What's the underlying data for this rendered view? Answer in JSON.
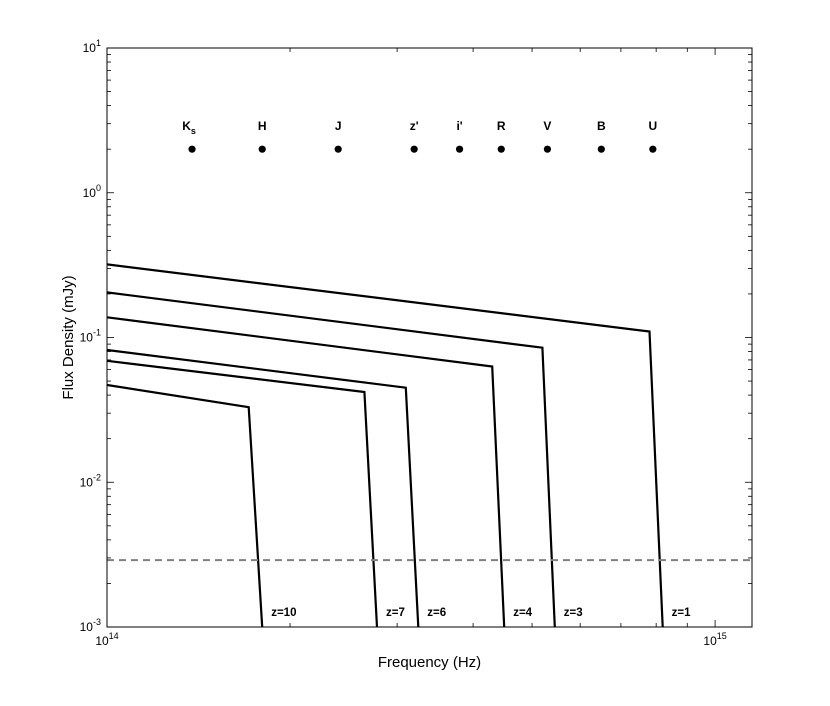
{
  "chart_data": {
    "type": "line",
    "xlabel": "Frequency (Hz)",
    "ylabel": "Flux Density (mJy)",
    "xscale": "log",
    "yscale": "log",
    "xlim": [
      100000000000000.0,
      1150000000000000.0
    ],
    "ylim": [
      0.001,
      10
    ],
    "x_ticks": [
      {
        "value": 100000000000000.0,
        "base": "10",
        "exp": "14"
      },
      {
        "value": 1000000000000000.0,
        "base": "10",
        "exp": "15"
      }
    ],
    "y_ticks": [
      {
        "value": 0.001,
        "base": "10",
        "exp": "-3"
      },
      {
        "value": 0.01,
        "base": "10",
        "exp": "-2"
      },
      {
        "value": 0.1,
        "base": "10",
        "exp": "-1"
      },
      {
        "value": 1,
        "base": "10",
        "exp": "0"
      },
      {
        "value": 10,
        "base": "10",
        "exp": "1"
      }
    ],
    "grid": false,
    "bands": [
      {
        "name": "K",
        "sub": "s",
        "frequency": 138000000000000.0,
        "flux": 2.0
      },
      {
        "name": "H",
        "sub": "",
        "frequency": 180000000000000.0,
        "flux": 2.0
      },
      {
        "name": "J",
        "sub": "",
        "frequency": 240000000000000.0,
        "flux": 2.0
      },
      {
        "name": "z'",
        "sub": "",
        "frequency": 320000000000000.0,
        "flux": 2.0
      },
      {
        "name": "i'",
        "sub": "",
        "frequency": 380000000000000.0,
        "flux": 2.0
      },
      {
        "name": "R",
        "sub": "",
        "frequency": 445000000000000.0,
        "flux": 2.0
      },
      {
        "name": "V",
        "sub": "",
        "frequency": 530000000000000.0,
        "flux": 2.0
      },
      {
        "name": "B",
        "sub": "",
        "frequency": 650000000000000.0,
        "flux": 2.0
      },
      {
        "name": "U",
        "sub": "",
        "frequency": 790000000000000.0,
        "flux": 2.0
      }
    ],
    "series": [
      {
        "name": "z=1",
        "x": [
          100000000000000.0,
          780000000000000.0,
          820000000000000.0
        ],
        "y": [
          0.32,
          0.11,
          0.001
        ]
      },
      {
        "name": "z=3",
        "x": [
          100000000000000.0,
          520000000000000.0,
          545000000000000.0
        ],
        "y": [
          0.205,
          0.085,
          0.001
        ]
      },
      {
        "name": "z=4",
        "x": [
          100000000000000.0,
          430000000000000.0,
          450000000000000.0
        ],
        "y": [
          0.138,
          0.063,
          0.001
        ]
      },
      {
        "name": "z=6",
        "x": [
          100000000000000.0,
          310000000000000.0,
          325000000000000.0
        ],
        "y": [
          0.082,
          0.045,
          0.001
        ]
      },
      {
        "name": "z=7",
        "x": [
          100000000000000.0,
          265000000000000.0,
          278000000000000.0
        ],
        "y": [
          0.069,
          0.042,
          0.001
        ]
      },
      {
        "name": "z=10",
        "x": [
          100000000000000.0,
          171000000000000.0,
          180000000000000.0
        ],
        "y": [
          0.047,
          0.033,
          0.001
        ]
      }
    ],
    "threshold": {
      "y": 0.0029,
      "style": "dashed",
      "color": "#808080"
    },
    "colors": {
      "series": "#000000",
      "threshold": "#808080",
      "axes": "#000000"
    }
  }
}
